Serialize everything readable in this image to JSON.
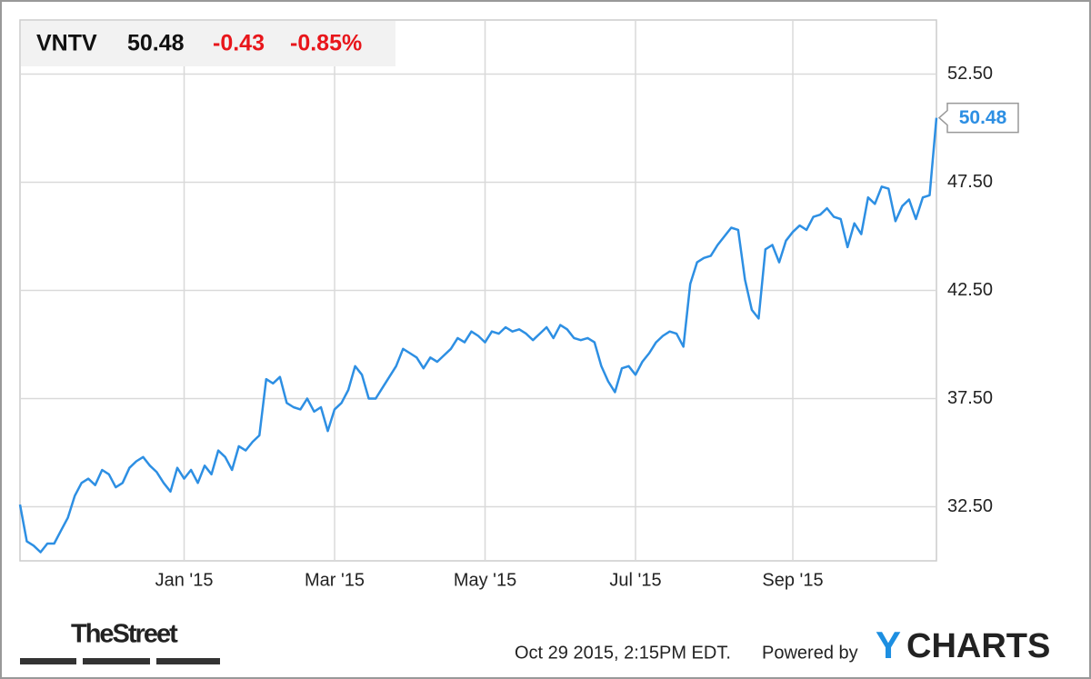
{
  "quote": {
    "ticker": "VNTV",
    "price": "50.48",
    "change": "-0.43",
    "change_pct": "-0.85%"
  },
  "chart_data": {
    "type": "line",
    "series": [
      {
        "color": "#2d8fe3",
        "values": [
          32.6,
          30.9,
          30.7,
          30.4,
          30.8,
          30.8,
          31.4,
          32.0,
          33.0,
          33.6,
          33.8,
          33.5,
          34.2,
          34.0,
          33.4,
          33.6,
          34.3,
          34.6,
          34.8,
          34.4,
          34.1,
          33.6,
          33.2,
          34.3,
          33.8,
          34.2,
          33.6,
          34.4,
          34.0,
          35.1,
          34.8,
          34.2,
          35.3,
          35.1,
          35.5,
          35.8,
          38.4,
          38.2,
          38.5,
          37.3,
          37.1,
          37.0,
          37.5,
          36.9,
          37.1,
          36.0,
          37.0,
          37.3,
          37.9,
          39.0,
          38.6,
          37.5,
          37.5,
          38.0,
          38.5,
          39.0,
          39.8,
          39.6,
          39.4,
          38.9,
          39.4,
          39.2,
          39.5,
          39.8,
          40.3,
          40.1,
          40.6,
          40.4,
          40.1,
          40.6,
          40.5,
          40.8,
          40.6,
          40.7,
          40.5,
          40.2,
          40.5,
          40.8,
          40.3,
          40.9,
          40.7,
          40.3,
          40.2,
          40.3,
          40.1,
          39.0,
          38.3,
          37.8,
          38.9,
          39.0,
          38.6,
          39.2,
          39.6,
          40.1,
          40.4,
          40.6,
          40.5,
          39.9,
          42.8,
          43.8,
          44.0,
          44.1,
          44.6,
          45.0,
          45.4,
          45.3,
          43.0,
          41.6,
          41.2,
          44.4,
          44.6,
          43.8,
          44.8,
          45.2,
          45.5,
          45.3,
          45.9,
          46.0,
          46.3,
          45.9,
          45.8,
          44.5,
          45.6,
          45.1,
          46.8,
          46.5,
          47.3,
          47.2,
          45.7,
          46.4,
          46.7,
          45.8,
          46.8,
          46.9,
          50.48
        ]
      }
    ],
    "xlim": [
      0,
      134
    ],
    "xticks": [
      {
        "value": 24,
        "label": "Jan '15"
      },
      {
        "value": 46,
        "label": "Mar '15"
      },
      {
        "value": 68,
        "label": "May '15"
      },
      {
        "value": 90,
        "label": "Jul '15"
      },
      {
        "value": 113,
        "label": "Sep '15"
      }
    ],
    "ylim": [
      30,
      55
    ],
    "yticks": [
      {
        "value": 32.5,
        "label": "32.50"
      },
      {
        "value": 37.5,
        "label": "37.50"
      },
      {
        "value": 42.5,
        "label": "42.50"
      },
      {
        "value": 47.5,
        "label": "47.50"
      },
      {
        "value": 52.5,
        "label": "52.50"
      }
    ],
    "grid": true
  },
  "footer": {
    "brand": "TheStreet",
    "timestamp": "Oct 29 2015, 2:15PM EDT.",
    "powered": "Powered by",
    "logo_y": "Y",
    "logo_rest": "CHARTS"
  }
}
